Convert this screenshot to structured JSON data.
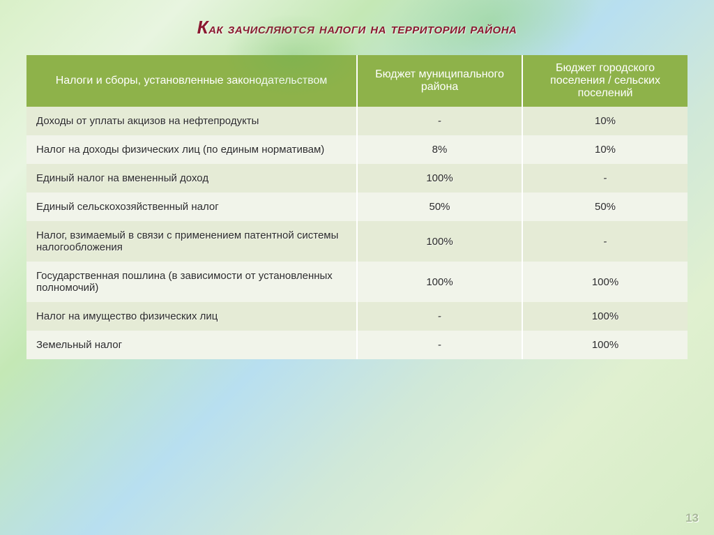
{
  "title_prefix_cap": "К",
  "title_rest": "ак зачисляются налоги на территории района",
  "page_number": "13",
  "table": {
    "header_bg": "#8eb24a",
    "header_fg": "#ffffff",
    "row_odd_bg": "#e5ebd6",
    "row_even_bg": "#f1f4ea",
    "columns": [
      "Налоги и сборы,\nустановленные  законодательством",
      "Бюджет муниципального района",
      "Бюджет городского поселения / сельских поселений"
    ],
    "rows": [
      {
        "name": "Доходы от уплаты акцизов на нефтепродукты",
        "c2": "-",
        "c3": "10%"
      },
      {
        "name": "Налог на доходы физических лиц (по единым  нормативам)",
        "c2": "8%",
        "c3": "10%"
      },
      {
        "name": "Единый налог на вмененный  доход",
        "c2": "100%",
        "c3": "-"
      },
      {
        "name": "Единый сельскохозяйственный  налог",
        "c2": "50%",
        "c3": "50%"
      },
      {
        "name": "Налог, взимаемый в связи с применением патентной  системы налогообложения",
        "c2": "100%",
        "c3": "-"
      },
      {
        "name": "Государственная пошлина (в зависимости от установленных\nполномочий)",
        "c2": "100%",
        "c3": "100%"
      },
      {
        "name": "Налог на имущество физических  лиц",
        "c2": "-",
        "c3": "100%"
      },
      {
        "name": "Земельный  налог",
        "c2": "-",
        "c3": "100%"
      }
    ]
  }
}
